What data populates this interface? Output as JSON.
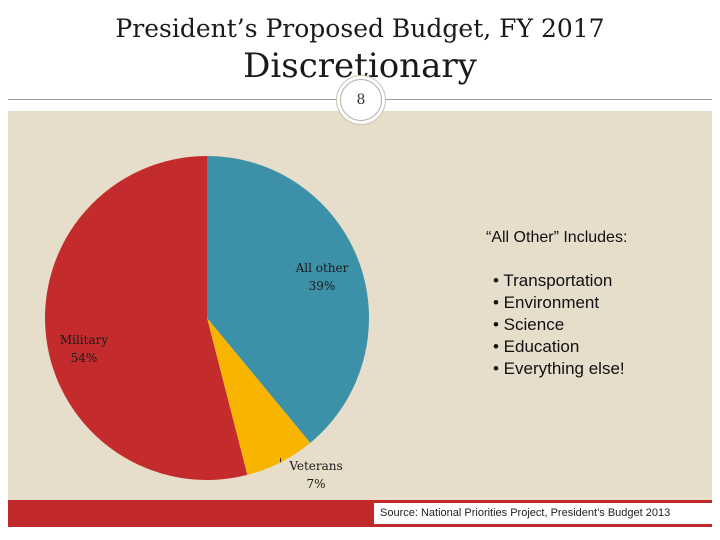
{
  "slide": {
    "title_line1": "President’s Proposed Budget, FY 2017",
    "title_line2": "Discretionary",
    "page_number": "8",
    "source": "Source: National Priorities Project, President’s Budget 2013"
  },
  "all_other_box": {
    "header": "“All Other” Includes:",
    "items": [
      "• Transportation",
      "• Environment",
      "• Science",
      "• Education",
      "• Everything else!"
    ]
  },
  "colors": {
    "panel": "#e6ddca",
    "accent": "#c0282a"
  },
  "chart_data": {
    "type": "pie",
    "title": "",
    "slices": [
      {
        "name": "All other",
        "value": 39,
        "label": "39%",
        "color": "#3c91a8"
      },
      {
        "name": "Veterans",
        "value": 7,
        "label": "7%",
        "color": "#f7b500"
      },
      {
        "name": "Military",
        "value": 54,
        "label": "54%",
        "color": "#c42b2c"
      }
    ],
    "start": "12 o'clock",
    "direction": "clockwise"
  }
}
